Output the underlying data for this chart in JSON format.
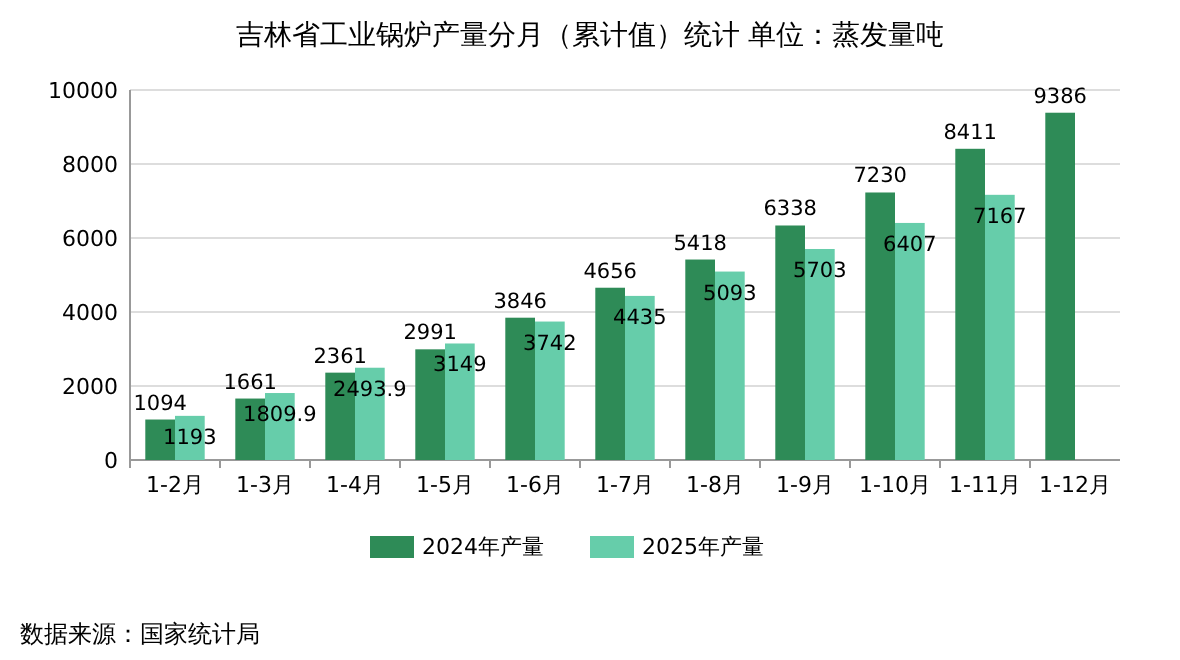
{
  "chart_data": {
    "type": "bar",
    "title": "吉林省工业锅炉产量分月（累计值）统计 单位：蒸发量吨",
    "categories": [
      "1-2月",
      "1-3月",
      "1-4月",
      "1-5月",
      "1-6月",
      "1-7月",
      "1-8月",
      "1-9月",
      "1-10月",
      "1-11月",
      "1-12月"
    ],
    "series": [
      {
        "name": "2024年产量",
        "color": "#2e8b57",
        "values": [
          1094,
          1661,
          2361,
          2991,
          3846,
          4656,
          5418,
          6338,
          7230,
          8411,
          9386
        ]
      },
      {
        "name": "2025年产量",
        "color": "#66cdaa",
        "values": [
          1193,
          1809.9,
          2493.9,
          3149,
          3742,
          4435,
          5093,
          5703,
          6407,
          7167,
          null
        ]
      }
    ],
    "ylim": [
      0,
      10000
    ],
    "yticks": [
      0,
      2000,
      4000,
      6000,
      8000,
      10000
    ],
    "grid": "y",
    "legend": "bottom",
    "data_labels": true,
    "annotations": [
      "数据来源：国家统计局"
    ]
  }
}
